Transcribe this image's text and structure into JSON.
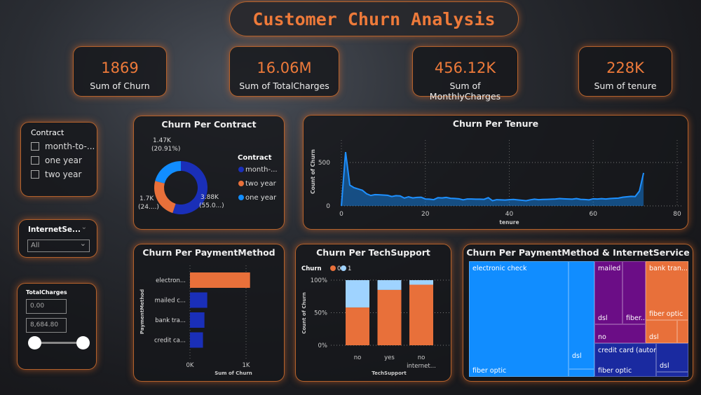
{
  "title": "Customer Churn Analysis",
  "kpis": [
    {
      "value": "1869",
      "label": "Sum of Churn"
    },
    {
      "value": "16.06M",
      "label": "Sum of TotalCharges"
    },
    {
      "value": "456.12K",
      "label": "Sum of MonthlyCharges"
    },
    {
      "value": "228K",
      "label": "Sum of tenure"
    }
  ],
  "slicers": {
    "contract": {
      "title": "Contract",
      "options": [
        "month-to-...",
        "one year",
        "two year"
      ]
    },
    "internet": {
      "title": "InternetSe...",
      "value": "All"
    },
    "total_charges": {
      "title": "TotalCharges",
      "min": "0.00",
      "max": "8,684.80"
    }
  },
  "colors": {
    "accent": "#ee7a3a",
    "dark_blue": "#1a2fb8",
    "light_blue": "#118dff",
    "orange": "#e8703a",
    "pale_blue": "#9fd3ff",
    "purple": "#6b0d86"
  },
  "chart_data": [
    {
      "type": "pie",
      "title": "Churn Per Contract",
      "legend_title": "Contract",
      "legend_position": "right",
      "categories": [
        "month-...",
        "two year",
        "one year"
      ],
      "values": [
        55.0,
        24.09,
        20.91
      ],
      "labels": [
        [
          "3.88K",
          "(55.0...)"
        ],
        [
          "1.7K",
          "(24....)"
        ],
        [
          "1.47K",
          "(20.91%)"
        ]
      ]
    },
    {
      "type": "area",
      "title": "Churn Per Tenure",
      "xlabel": "tenure",
      "ylabel": "Count of Churn",
      "xlim": [
        0,
        80
      ],
      "ylim": [
        0,
        650
      ],
      "xticks": [
        "0",
        "20",
        "40",
        "60",
        "80"
      ],
      "yticks": [
        "0",
        "500"
      ],
      "grid": true,
      "x_start": 0,
      "values": [
        0,
        620,
        240,
        210,
        195,
        180,
        140,
        120,
        130,
        128,
        125,
        122,
        108,
        118,
        115,
        90,
        105,
        92,
        98,
        100,
        80,
        78,
        72,
        95,
        92,
        98,
        88,
        86,
        82,
        70,
        80,
        80,
        78,
        78,
        76,
        95,
        60,
        72,
        70,
        68,
        72,
        75,
        70,
        65,
        60,
        70,
        78,
        72,
        75,
        76,
        78,
        80,
        85,
        82,
        80,
        78,
        85,
        76,
        74,
        70,
        82,
        80,
        84,
        80,
        85,
        88,
        90,
        100,
        105,
        110,
        108,
        170,
        380
      ]
    },
    {
      "type": "bar",
      "orientation": "horizontal",
      "title": "Churn Per PaymentMethod",
      "xlabel": "Sum of Churn",
      "ylabel": "PaymentMethod",
      "categories": [
        "electron...",
        "mailed c...",
        "bank tra...",
        "credit ca..."
      ],
      "values": [
        1071,
        308,
        258,
        232
      ],
      "xlim": [
        0,
        1100
      ],
      "xticks": [
        "0K",
        "1K"
      ]
    },
    {
      "type": "bar",
      "stacked": "percent",
      "title": "Churn Per TechSupport",
      "xlabel": "TechSupport",
      "ylabel": "Count of Churn",
      "legend_title": "Churn",
      "legend_position": "top-left",
      "categories": [
        "no",
        "yes",
        "no internet..."
      ],
      "yticks": [
        "0%",
        "50%",
        "100%"
      ],
      "series": [
        {
          "name": "0",
          "values": [
            58,
            85,
            93
          ]
        },
        {
          "name": "1",
          "values": [
            42,
            15,
            7
          ]
        }
      ]
    },
    {
      "type": "treemap",
      "title": "Churn Per PaymentMethod & InternetService",
      "groups": [
        {
          "name": "electronic check",
          "children": [
            "fiber optic",
            "dsl"
          ]
        },
        {
          "name": "mailed check",
          "children": [
            "dsl",
            "fiber...",
            "no"
          ]
        },
        {
          "name": "bank tran...",
          "children": [
            "fiber optic",
            "dsl"
          ]
        },
        {
          "name": "credit card (automatic)",
          "children": [
            "fiber optic",
            "dsl"
          ]
        }
      ]
    }
  ]
}
